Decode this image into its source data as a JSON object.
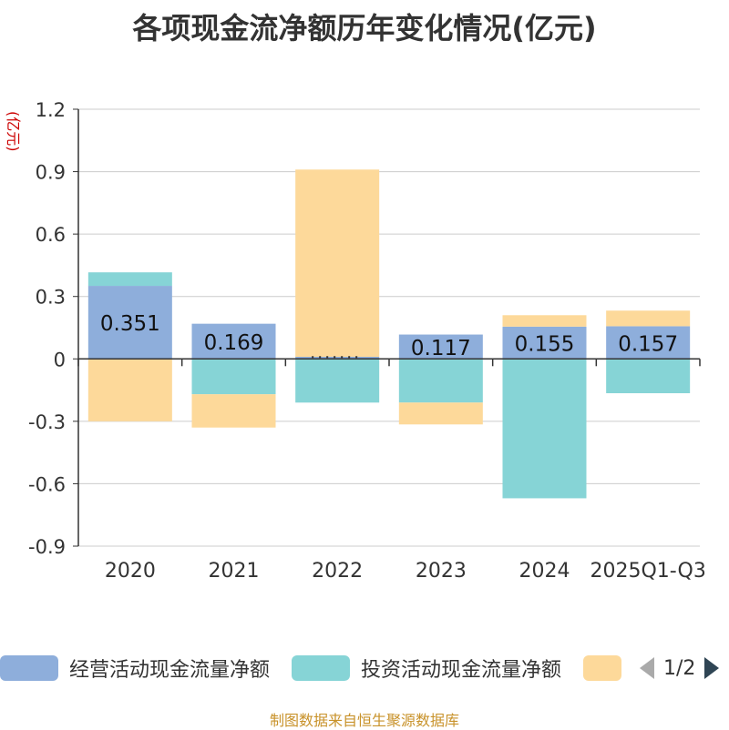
{
  "chart_data": {
    "type": "bar",
    "stacked": true,
    "title": "各项现金流净额历年变化情况(亿元)",
    "yunit": "(亿元)",
    "categories": [
      "2020",
      "2021",
      "2022",
      "2023",
      "2024",
      "2025Q1-Q3"
    ],
    "ylim": [
      -0.9,
      1.2
    ],
    "yticks": [
      1.2,
      0.9,
      0.6,
      0.3,
      0,
      -0.3,
      -0.6,
      -0.9
    ],
    "ytick_labels": [
      "1.2",
      "0.9",
      "0.6",
      "0.3",
      "0",
      "-0.3",
      "-0.6",
      "-0.9"
    ],
    "series": [
      {
        "name": "经营活动现金流量净额",
        "color": "#8eaedb",
        "values": [
          0.351,
          0.169,
          0.01,
          0.117,
          0.155,
          0.157
        ],
        "labels": [
          "0.351",
          "0.169",
          "",
          "0.117",
          "0.155",
          "0.157"
        ]
      },
      {
        "name": "投资活动现金流量净额",
        "color": "#86d4d6",
        "values": [
          0.065,
          -0.17,
          -0.21,
          -0.21,
          -0.67,
          -0.165
        ]
      },
      {
        "name": "",
        "color": "#fdd99a",
        "values": [
          -0.3,
          -0.16,
          0.9,
          -0.105,
          0.055,
          0.075
        ]
      }
    ],
    "legend_position": "bottom"
  },
  "legend": {
    "items": [
      {
        "label": "经营活动现金流量净额",
        "color": "#8eaedb"
      },
      {
        "label": "投资活动现金流量净额",
        "color": "#86d4d6"
      },
      {
        "label": "",
        "color": "#fdd99a"
      }
    ],
    "page": "1/2"
  },
  "footer": "制图数据来自恒生聚源数据库"
}
